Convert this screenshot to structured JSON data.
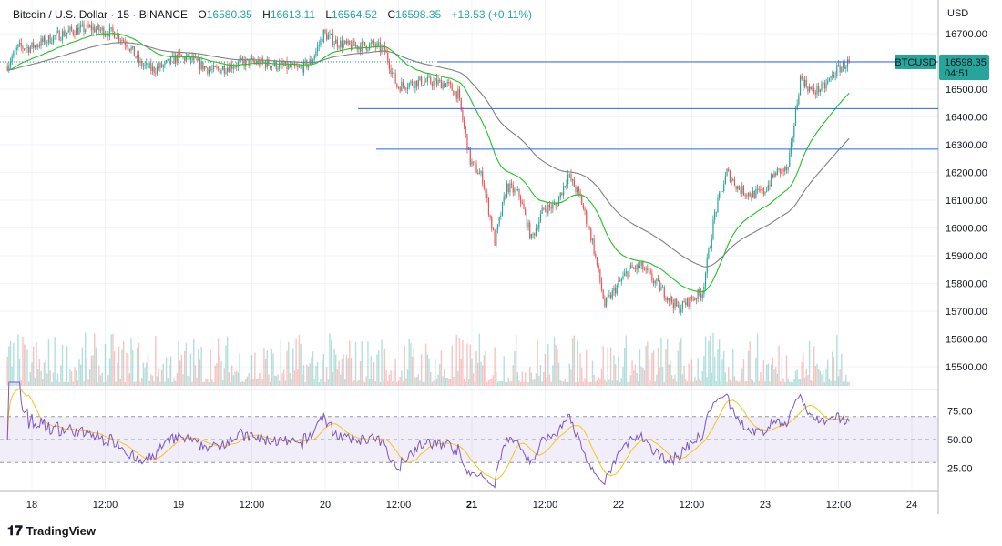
{
  "header": {
    "symbol_title": "Bitcoin / U.S. Dollar · 15 · BINANCE",
    "open_label": "O",
    "open": "16580.35",
    "high_label": "H",
    "high": "16613.11",
    "low_label": "L",
    "low": "16564.52",
    "close_label": "C",
    "close": "16598.35",
    "change": "+18.53 (+0.11%)"
  },
  "price_axis": {
    "currency": "USD",
    "ticks": [
      "16700.00",
      "16600.00",
      "16500.00",
      "16400.00",
      "16300.00",
      "16200.00",
      "16100.00",
      "16000.00",
      "15900.00",
      "15800.00",
      "15700.00",
      "15600.00",
      "15500.00"
    ],
    "last_price_symbol": "BTCUSD",
    "last_price": "16598.35",
    "countdown": "04:51"
  },
  "rsi_axis": {
    "ticks": [
      "75.00",
      "50.00",
      "25.00"
    ]
  },
  "time_axis": {
    "ticks": [
      "18",
      "12:00",
      "19",
      "12:00",
      "20",
      "12:00",
      "21",
      "12:00",
      "22",
      "12:00",
      "23",
      "12:00",
      "24"
    ]
  },
  "branding": {
    "logo_text": "TradingView"
  },
  "colors": {
    "up": "#26a69a",
    "down": "#ef5350",
    "fast_ma": "#22c322",
    "slow_ma": "#808080",
    "rsi": "#7e57c2",
    "rsi_signal": "#f5c518",
    "hline": "#2962ff",
    "badge": "#26a69a"
  },
  "chart_data": {
    "type": "candlestick",
    "interval_shown": "15",
    "close_series_2h_from": "17 20:00",
    "closes_2h": [
      16580,
      16650,
      16650,
      16670,
      16690,
      16705,
      16715,
      16720,
      16710,
      16700,
      16660,
      16590,
      16570,
      16585,
      16615,
      16610,
      16585,
      16565,
      16580,
      16592,
      16598,
      16595,
      16588,
      16580,
      16572,
      16600,
      16700,
      16670,
      16655,
      16655,
      16660,
      16640,
      16510,
      16520,
      16528,
      16525,
      16520,
      16480,
      16240,
      16180,
      15950,
      16150,
      16120,
      15960,
      16070,
      16080,
      16190,
      16110,
      15950,
      15720,
      15790,
      15850,
      15860,
      15810,
      15760,
      15710,
      15740,
      15770,
      16050,
      16200,
      16140,
      16120,
      16130,
      16200,
      16210,
      16540,
      16490,
      16510,
      16570,
      16598.35
    ],
    "horizontal_lines": [
      16598.35,
      16430,
      16284
    ],
    "y_range": [
      15450,
      16760
    ],
    "indicators": [
      "moving average (green)",
      "moving average (gray)",
      "RSI with signal",
      "volume"
    ],
    "rsi_levels": [
      70,
      50,
      30
    ],
    "grid": true
  }
}
